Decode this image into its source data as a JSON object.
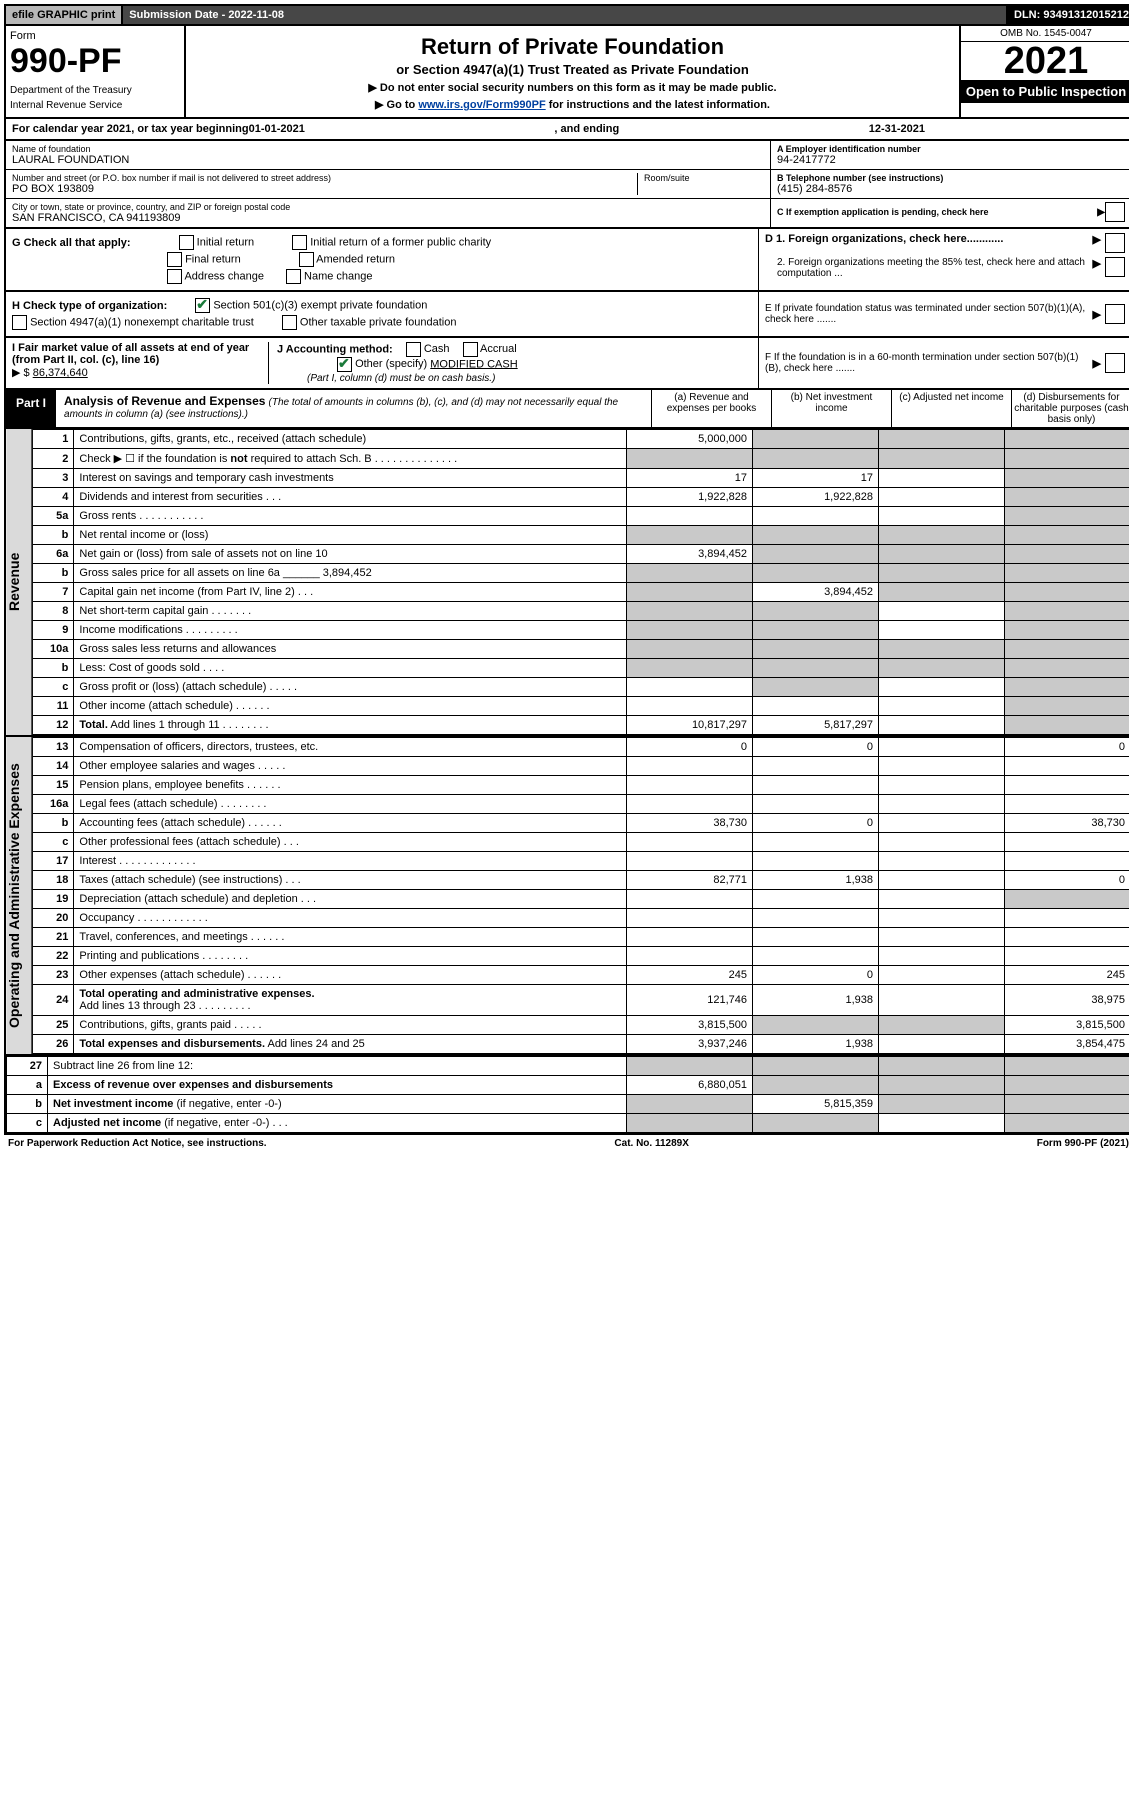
{
  "top": {
    "efile": "efile GRAPHIC print",
    "submission": "Submission Date - 2022-11-08",
    "dln": "DLN: 93491312015212"
  },
  "header": {
    "form_word": "Form",
    "form_number": "990-PF",
    "dept1": "Department of the Treasury",
    "dept2": "Internal Revenue Service",
    "title": "Return of Private Foundation",
    "subtitle": "or Section 4947(a)(1) Trust Treated as Private Foundation",
    "note1": "▶ Do not enter social security numbers on this form as it may be made public.",
    "note2_a": "▶ Go to ",
    "note2_link": "www.irs.gov/Form990PF",
    "note2_b": " for instructions and the latest information.",
    "omb": "OMB No. 1545-0047",
    "year": "2021",
    "open": "Open to Public Inspection"
  },
  "calendar": {
    "prefix": "For calendar year 2021, or tax year beginning ",
    "begin": "01-01-2021",
    "mid": " , and ending ",
    "end": "12-31-2021"
  },
  "identity": {
    "name_label": "Name of foundation",
    "name": "LAURAL FOUNDATION",
    "addr_label": "Number and street (or P.O. box number if mail is not delivered to street address)",
    "room_label": "Room/suite",
    "addr": "PO BOX 193809",
    "city_label": "City or town, state or province, country, and ZIP or foreign postal code",
    "city": "SAN FRANCISCO, CA 941193809",
    "ein_label": "A Employer identification number",
    "ein": "94-2417772",
    "phone_label": "B Telephone number (see instructions)",
    "phone": "(415) 284-8576",
    "c_label": "C If exemption application is pending, check here",
    "d1": "D 1. Foreign organizations, check here............",
    "d2": "2. Foreign organizations meeting the 85% test, check here and attach computation ...",
    "e_label": "E If private foundation status was terminated under section 507(b)(1)(A), check here .......",
    "f_label": "F If the foundation is in a 60-month termination under section 507(b)(1)(B), check here ......."
  },
  "checks": {
    "g_label": "G Check all that apply:",
    "g_initial": "Initial return",
    "g_initial_former": "Initial return of a former public charity",
    "g_final": "Final return",
    "g_amended": "Amended return",
    "g_address": "Address change",
    "g_name": "Name change",
    "h_label": "H Check type of organization:",
    "h_501c3": "Section 501(c)(3) exempt private foundation",
    "h_4947": "Section 4947(a)(1) nonexempt charitable trust",
    "h_other": "Other taxable private foundation",
    "i_label": "I Fair market value of all assets at end of year (from Part II, col. (c), line 16)",
    "i_prefix": "▶ $",
    "i_value": "86,374,640",
    "j_label": "J Accounting method:",
    "j_cash": "Cash",
    "j_accrual": "Accrual",
    "j_other": "Other (specify)",
    "j_other_val": "MODIFIED CASH",
    "j_note": "(Part I, column (d) must be on cash basis.)"
  },
  "part1": {
    "label": "Part I",
    "title": "Analysis of Revenue and Expenses",
    "note": "(The total of amounts in columns (b), (c), and (d) may not necessarily equal the amounts in column (a) (see instructions).)",
    "col_a": "(a) Revenue and expenses per books",
    "col_b": "(b) Net investment income",
    "col_c": "(c) Adjusted net income",
    "col_d": "(d) Disbursements for charitable purposes (cash basis only)"
  },
  "sections": {
    "revenue": "Revenue",
    "expenses": "Operating and Administrative Expenses"
  },
  "rows": [
    {
      "n": "1",
      "d": "grey",
      "a": "5,000,000",
      "b": "grey",
      "c": "grey"
    },
    {
      "n": "2",
      "d": "grey",
      "a": "grey",
      "b": "grey",
      "c": "grey"
    },
    {
      "n": "3",
      "d": "grey",
      "a": "17",
      "b": "17",
      "c": ""
    },
    {
      "n": "4",
      "d": "grey",
      "a": "1,922,828",
      "b": "1,922,828",
      "c": ""
    },
    {
      "n": "5a",
      "d": "grey",
      "a": "",
      "b": "",
      "c": ""
    },
    {
      "n": "b",
      "d": "grey",
      "a": "grey",
      "b": "grey",
      "c": "grey",
      "inline": true
    },
    {
      "n": "6a",
      "d": "grey",
      "a": "3,894,452",
      "b": "grey",
      "c": "grey"
    },
    {
      "n": "b",
      "d": "grey",
      "a": "grey",
      "b": "grey",
      "c": "grey",
      "extra": "3,894,452"
    },
    {
      "n": "7",
      "d": "grey",
      "a": "grey",
      "b": "3,894,452",
      "c": "grey"
    },
    {
      "n": "8",
      "d": "grey",
      "a": "grey",
      "b": "grey",
      "c": ""
    },
    {
      "n": "9",
      "d": "grey",
      "a": "grey",
      "b": "grey",
      "c": ""
    },
    {
      "n": "10a",
      "d": "grey",
      "a": "grey",
      "b": "grey",
      "c": "grey",
      "inline": true
    },
    {
      "n": "b",
      "d": "grey",
      "a": "grey",
      "b": "grey",
      "c": "grey",
      "inline": true
    },
    {
      "n": "c",
      "d": "grey",
      "a": "",
      "b": "grey",
      "c": ""
    },
    {
      "n": "11",
      "d": "grey",
      "a": "",
      "b": "",
      "c": ""
    },
    {
      "n": "12",
      "d": "grey",
      "a": "10,817,297",
      "b": "5,817,297",
      "c": "",
      "bold": true
    },
    {
      "n": "13",
      "d": "0",
      "a": "0",
      "b": "0",
      "c": ""
    },
    {
      "n": "14",
      "d": "",
      "a": "",
      "b": "",
      "c": ""
    },
    {
      "n": "15",
      "d": "",
      "a": "",
      "b": "",
      "c": ""
    },
    {
      "n": "16a",
      "d": "",
      "a": "",
      "b": "",
      "c": ""
    },
    {
      "n": "b",
      "d": "38,730",
      "a": "38,730",
      "b": "0",
      "c": ""
    },
    {
      "n": "c",
      "d": "",
      "a": "",
      "b": "",
      "c": ""
    },
    {
      "n": "17",
      "d": "",
      "a": "",
      "b": "",
      "c": ""
    },
    {
      "n": "18",
      "d": "0",
      "a": "82,771",
      "b": "1,938",
      "c": ""
    },
    {
      "n": "19",
      "d": "grey",
      "a": "",
      "b": "",
      "c": ""
    },
    {
      "n": "20",
      "d": "",
      "a": "",
      "b": "",
      "c": ""
    },
    {
      "n": "21",
      "d": "",
      "a": "",
      "b": "",
      "c": ""
    },
    {
      "n": "22",
      "d": "",
      "a": "",
      "b": "",
      "c": ""
    },
    {
      "n": "23",
      "d": "245",
      "a": "245",
      "b": "0",
      "c": ""
    },
    {
      "n": "24",
      "d": "38,975",
      "a": "121,746",
      "b": "1,938",
      "c": "",
      "bold": true
    },
    {
      "n": "25",
      "d": "3,815,500",
      "a": "3,815,500",
      "b": "grey",
      "c": "grey"
    },
    {
      "n": "26",
      "d": "3,854,475",
      "a": "3,937,246",
      "b": "1,938",
      "c": "",
      "bold": true
    },
    {
      "n": "27",
      "d": "grey",
      "a": "grey",
      "b": "grey",
      "c": "grey"
    },
    {
      "n": "a",
      "d": "grey",
      "a": "6,880,051",
      "b": "grey",
      "c": "grey",
      "bold": true
    },
    {
      "n": "b",
      "d": "grey",
      "a": "grey",
      "b": "5,815,359",
      "c": "grey",
      "bold": true
    },
    {
      "n": "c",
      "d": "grey",
      "a": "grey",
      "b": "grey",
      "c": "",
      "bold": true
    }
  ],
  "footer": {
    "left": "For Paperwork Reduction Act Notice, see instructions.",
    "mid": "Cat. No. 11289X",
    "right": "Form 990-PF (2021)"
  },
  "colors": {
    "grey_cell": "#c9c9c9",
    "side_grey": "#dadada",
    "link": "#0040a0",
    "check_green": "#1a7a3a"
  }
}
